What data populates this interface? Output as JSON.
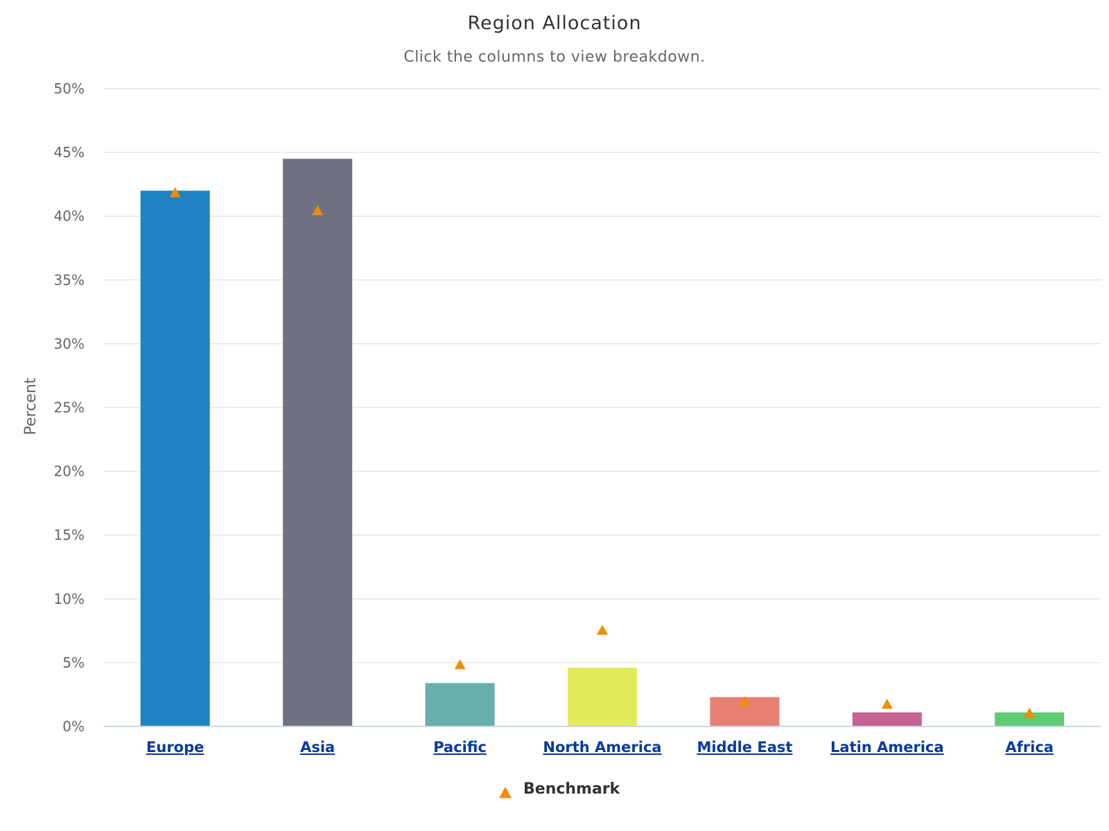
{
  "chart_data": {
    "type": "bar",
    "title": "Region Allocation",
    "subtitle": "Click the columns to view breakdown.",
    "ylabel": "Percent",
    "xlabel": "",
    "ylim": [
      0,
      50
    ],
    "y_ticks": [
      "0%",
      "5%",
      "10%",
      "15%",
      "20%",
      "25%",
      "30%",
      "35%",
      "40%",
      "45%",
      "50%"
    ],
    "y_tick_values": [
      0,
      5,
      10,
      15,
      20,
      25,
      30,
      35,
      40,
      45,
      50
    ],
    "grid": true,
    "legend_position": "bottom-center",
    "categories": [
      "Europe",
      "Asia",
      "Pacific",
      "North America",
      "Middle East",
      "Latin America",
      "Africa"
    ],
    "series": [
      {
        "type": "bar",
        "values": [
          42.0,
          44.5,
          3.4,
          4.6,
          2.3,
          1.1,
          1.1
        ],
        "colors": [
          "#1f82c5",
          "#6f7180",
          "#66afad",
          "#e2ec5b",
          "#e87f73",
          "#c46494",
          "#5fcb73"
        ]
      },
      {
        "name": "Benchmark",
        "type": "scatter",
        "marker": "triangle",
        "color": "#f08c00",
        "values": [
          41.8,
          40.4,
          4.8,
          7.5,
          1.9,
          1.7,
          1.0
        ]
      }
    ]
  }
}
